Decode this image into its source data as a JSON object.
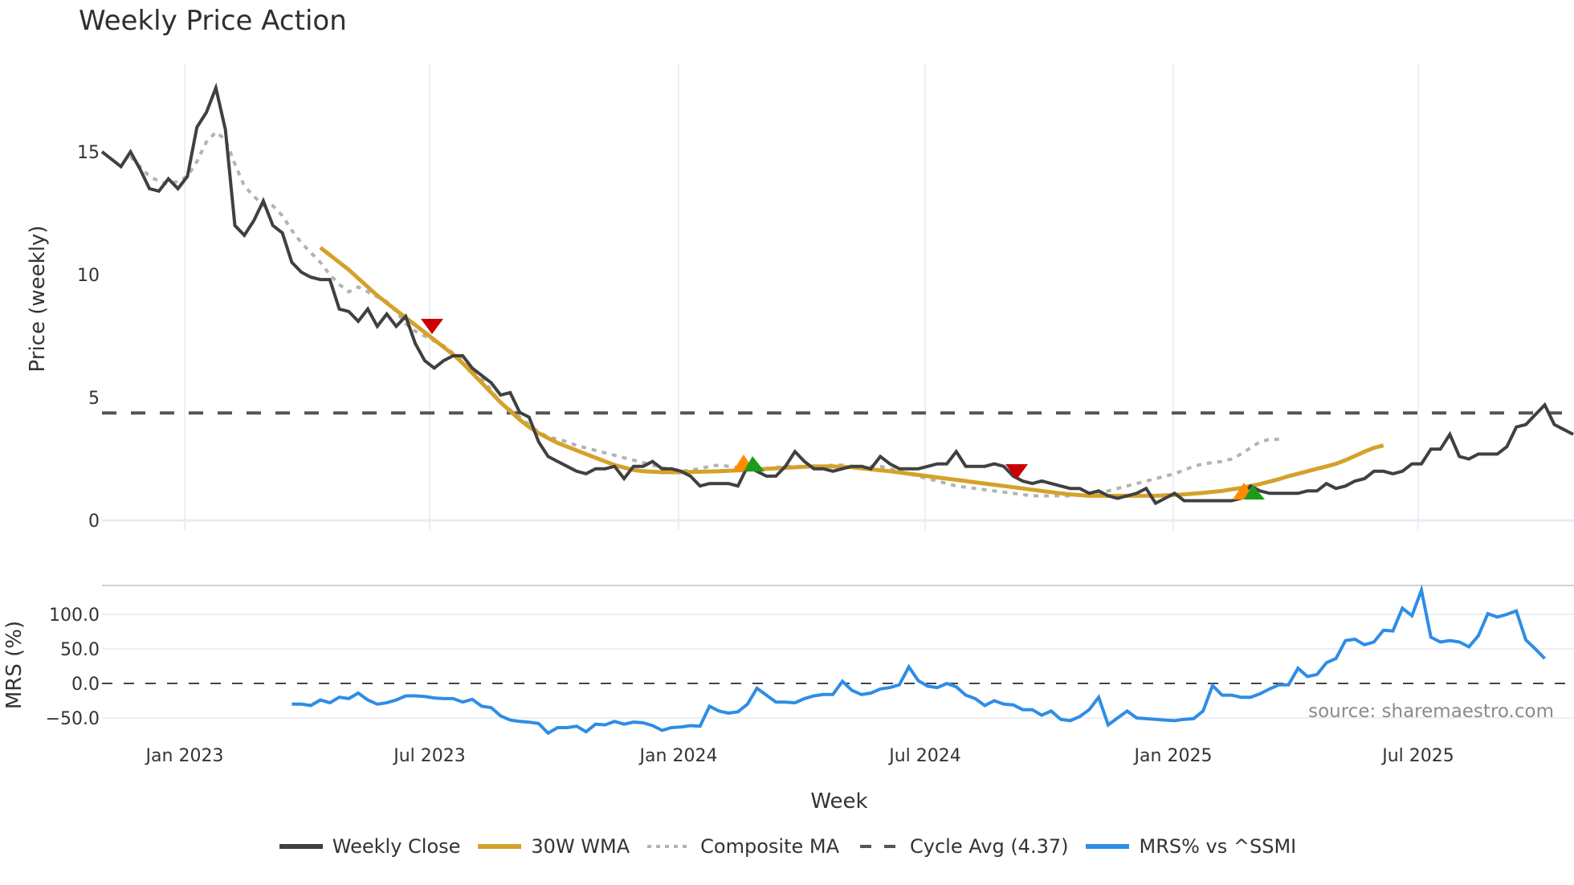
{
  "header": {
    "title": "Weekly Price Action"
  },
  "source_note": "source: sharemaestro.com",
  "axes": {
    "price_ylabel": "Price (weekly)",
    "mrs_ylabel": "MRS (%)",
    "xlabel": "Week",
    "price_yticks": [
      "0",
      "5",
      "10",
      "15"
    ],
    "mrs_yticks": [
      "100.0",
      "50.0",
      "0.0",
      "−50.0"
    ],
    "xticks": [
      "Jan 2023",
      "Jul 2023",
      "Jan 2024",
      "Jul 2024",
      "Jan 2025",
      "Jul 2025"
    ]
  },
  "legend": [
    {
      "label": "Weekly Close",
      "color": "#404040",
      "style": "solid"
    },
    {
      "label": "30W WMA",
      "color": "#d4a22a",
      "style": "solid"
    },
    {
      "label": "Composite MA",
      "color": "#b3b3b3",
      "style": "dotted"
    },
    {
      "label": "Cycle Avg (4.37)",
      "color": "#555555",
      "style": "dashed"
    },
    {
      "label": "MRS% vs ^SSMI",
      "color": "#2e8de6",
      "style": "solid"
    }
  ],
  "colors": {
    "weekly_close": "#404040",
    "wma": "#d4a22a",
    "composite_ma": "#b3b3b3",
    "cycle_avg": "#555555",
    "mrs": "#2e8de6",
    "buy_marker_orange": "#ff8c00",
    "buy_marker_green": "#1a9e1a",
    "sell_marker": "#cc0000",
    "grid": "#e8edf3"
  },
  "chart_data": [
    {
      "type": "line",
      "title": "Weekly Price Action",
      "xlabel": "Week",
      "ylabel": "Price (weekly)",
      "ylim": [
        -0.4,
        17.8
      ],
      "x_ticks": [
        "Jan 2023",
        "Jul 2023",
        "Jan 2024",
        "Jul 2024",
        "Jan 2025",
        "Jul 2025"
      ],
      "x_start": "2022-11 (approx)",
      "x_end": "2025-10 (approx)",
      "grid": true,
      "legend_position": "bottom",
      "series": [
        {
          "name": "Weekly Close",
          "start_week": 0,
          "values": [
            15.0,
            14.7,
            14.4,
            15.0,
            14.3,
            13.5,
            13.4,
            13.9,
            13.5,
            14.0,
            16.0,
            16.6,
            17.6,
            15.9,
            12.0,
            11.6,
            12.2,
            13.0,
            12.0,
            11.7,
            10.5,
            10.1,
            9.9,
            9.8,
            9.8,
            8.6,
            8.5,
            8.1,
            8.6,
            7.9,
            8.4,
            7.9,
            8.3,
            7.2,
            6.5,
            6.2,
            6.5,
            6.7,
            6.7,
            6.2,
            5.9,
            5.6,
            5.1,
            5.2,
            4.4,
            4.2,
            3.2,
            2.6,
            2.4,
            2.2,
            2.0,
            1.9,
            2.1,
            2.1,
            2.2,
            1.7,
            2.2,
            2.2,
            2.4,
            2.1,
            2.1,
            2.0,
            1.8,
            1.4,
            1.5,
            1.5,
            1.5,
            1.4,
            2.2,
            2.0,
            1.8,
            1.8,
            2.2,
            2.8,
            2.4,
            2.1,
            2.1,
            2.0,
            2.1,
            2.2,
            2.2,
            2.1,
            2.6,
            2.3,
            2.1,
            2.1,
            2.1,
            2.2,
            2.3,
            2.3,
            2.8,
            2.2,
            2.2,
            2.2,
            2.3,
            2.2,
            1.8,
            1.6,
            1.5,
            1.6,
            1.5,
            1.4,
            1.3,
            1.3,
            1.1,
            1.2,
            1.0,
            0.9,
            1.0,
            1.1,
            1.3,
            0.7,
            0.9,
            1.1,
            0.8,
            0.8,
            0.8,
            0.8,
            0.8,
            0.8,
            0.9,
            1.4,
            1.2,
            1.1,
            1.1,
            1.1,
            1.1,
            1.2,
            1.2,
            1.5,
            1.3,
            1.4,
            1.6,
            1.7,
            2.0,
            2.0,
            1.9,
            2.0,
            2.3,
            2.3,
            2.9,
            2.9,
            3.5,
            2.6,
            2.5,
            2.7,
            2.7,
            2.7,
            3.0,
            3.8,
            3.9,
            4.3,
            4.7,
            3.9,
            3.7,
            3.5
          ]
        },
        {
          "name": "30W WMA",
          "start_week": 23,
          "values": [
            11.1,
            10.8,
            10.5,
            10.2,
            9.85,
            9.5,
            9.15,
            8.85,
            8.55,
            8.25,
            7.95,
            7.65,
            7.35,
            7.05,
            6.75,
            6.4,
            6.0,
            5.6,
            5.2,
            4.8,
            4.45,
            4.1,
            3.8,
            3.55,
            3.35,
            3.15,
            3.0,
            2.85,
            2.7,
            2.55,
            2.4,
            2.25,
            2.15,
            2.05,
            2.0,
            1.98,
            1.96,
            1.96,
            1.96,
            1.97,
            1.98,
            1.99,
            2.0,
            2.02,
            2.04,
            2.06,
            2.08,
            2.1,
            2.12,
            2.14,
            2.16,
            2.18,
            2.2,
            2.2,
            2.2,
            2.18,
            2.16,
            2.12,
            2.08,
            2.04,
            2.0,
            1.95,
            1.9,
            1.85,
            1.8,
            1.75,
            1.7,
            1.65,
            1.6,
            1.55,
            1.5,
            1.45,
            1.4,
            1.35,
            1.3,
            1.25,
            1.2,
            1.15,
            1.1,
            1.06,
            1.03,
            1.0,
            1.0,
            1.0,
            1.0,
            1.0,
            1.0,
            1.0,
            1.0,
            1.02,
            1.04,
            1.06,
            1.09,
            1.12,
            1.16,
            1.2,
            1.26,
            1.32,
            1.4,
            1.48,
            1.58,
            1.68,
            1.8,
            1.9,
            2.0,
            2.1,
            2.2,
            2.3,
            2.45,
            2.62,
            2.8,
            2.95,
            3.05
          ]
        },
        {
          "name": "Composite MA",
          "start_week": 3,
          "values": [
            14.8,
            14.4,
            14.0,
            13.8,
            13.7,
            13.8,
            14.0,
            14.6,
            15.4,
            15.8,
            15.5,
            14.5,
            13.6,
            13.2,
            12.8,
            12.8,
            12.4,
            11.8,
            11.3,
            10.9,
            10.5,
            10.0,
            9.6,
            9.3,
            9.5,
            9.3,
            9.1,
            8.9,
            8.5,
            8.0,
            7.7,
            7.5,
            7.3,
            7.1,
            6.8,
            6.5,
            6.2,
            5.8,
            5.3,
            4.8,
            4.5,
            4.2,
            3.9,
            3.6,
            3.4,
            3.3,
            3.2,
            3.05,
            2.95,
            2.85,
            2.75,
            2.65,
            2.55,
            2.45,
            2.35,
            2.25,
            2.15,
            2.05,
            2.0,
            2.05,
            2.1,
            2.2,
            2.25,
            2.2,
            2.15,
            2.1,
            2.1,
            2.1,
            2.15,
            2.2,
            2.2,
            2.2,
            2.2,
            2.2,
            2.25,
            2.25,
            2.2,
            2.2,
            2.2,
            2.2,
            2.1,
            2.0,
            1.9,
            1.8,
            1.7,
            1.6,
            1.5,
            1.4,
            1.35,
            1.3,
            1.25,
            1.2,
            1.15,
            1.1,
            1.05,
            1.0,
            1.0,
            1.0,
            1.0,
            1.0,
            1.05,
            1.1,
            1.15,
            1.2,
            1.3,
            1.4,
            1.5,
            1.6,
            1.7,
            1.8,
            1.9,
            2.05,
            2.2,
            2.3,
            2.35,
            2.4,
            2.5,
            2.7,
            2.95,
            3.2,
            3.3,
            3.3
          ]
        },
        {
          "name": "Cycle Avg (4.37)",
          "type": "hline",
          "value": 4.37
        }
      ],
      "markers": [
        {
          "type": "sell",
          "shape": "triangle-down",
          "color": "#cc0000",
          "x": "Jul 2023",
          "y": 7.9
        },
        {
          "type": "buy",
          "shape": "triangle-up",
          "color": "#ff8c00",
          "x": "Mar 2024",
          "y": 2.2
        },
        {
          "type": "buy",
          "shape": "triangle-up",
          "color": "#1a9e1a",
          "x": "Mar 2024",
          "y": 2.2
        },
        {
          "type": "sell",
          "shape": "triangle-down",
          "color": "#cc0000",
          "x": "Oct 2024",
          "y": 2.0
        },
        {
          "type": "buy",
          "shape": "triangle-up",
          "color": "#ff8c00",
          "x": "Mar 2025",
          "y": 1.0
        },
        {
          "type": "buy",
          "shape": "triangle-up",
          "color": "#1a9e1a",
          "x": "Mar 2025",
          "y": 1.1
        }
      ]
    },
    {
      "type": "line",
      "title": "",
      "xlabel": "Week",
      "ylabel": "MRS (%)",
      "ylim": [
        -75,
        140
      ],
      "yticks": [
        -50,
        0,
        50,
        100
      ],
      "zero_line": "dashed",
      "series": [
        {
          "name": "MRS% vs ^SSMI",
          "start_week": 20,
          "values": [
            -30,
            -30,
            -32,
            -24,
            -28,
            -20,
            -22,
            -14,
            -24,
            -30,
            -28,
            -24,
            -18,
            -18,
            -19,
            -21,
            -22,
            -22,
            -27,
            -23,
            -33,
            -35,
            -47,
            -53,
            -55,
            -56,
            -58,
            -72,
            -64,
            -64,
            -62,
            -70,
            -59,
            -60,
            -55,
            -59,
            -56,
            -57,
            -61,
            -68,
            -64,
            -63,
            -61,
            -62,
            -33,
            -40,
            -43,
            -41,
            -30,
            -7,
            -17,
            -27,
            -27,
            -28,
            -22,
            -18,
            -16,
            -16,
            3,
            -10,
            -16,
            -14,
            -8,
            -6,
            -2,
            24,
            4,
            -4,
            -6,
            0,
            -5,
            -17,
            -22,
            -32,
            -25,
            -30,
            -31,
            -38,
            -38,
            -46,
            -40,
            -52,
            -54,
            -48,
            -38,
            -20,
            -60,
            -50,
            -40,
            -50,
            -51,
            -52,
            -53,
            -54,
            -52,
            -51,
            -40,
            -3,
            -17,
            -17,
            -20,
            -20,
            -15,
            -8,
            -2,
            -2,
            22,
            10,
            13,
            30,
            36,
            62,
            64,
            56,
            60,
            77,
            76,
            109,
            98,
            135,
            67,
            60,
            62,
            60,
            53,
            69,
            101,
            96,
            100,
            105,
            63,
            50,
            36
          ]
        }
      ]
    }
  ]
}
